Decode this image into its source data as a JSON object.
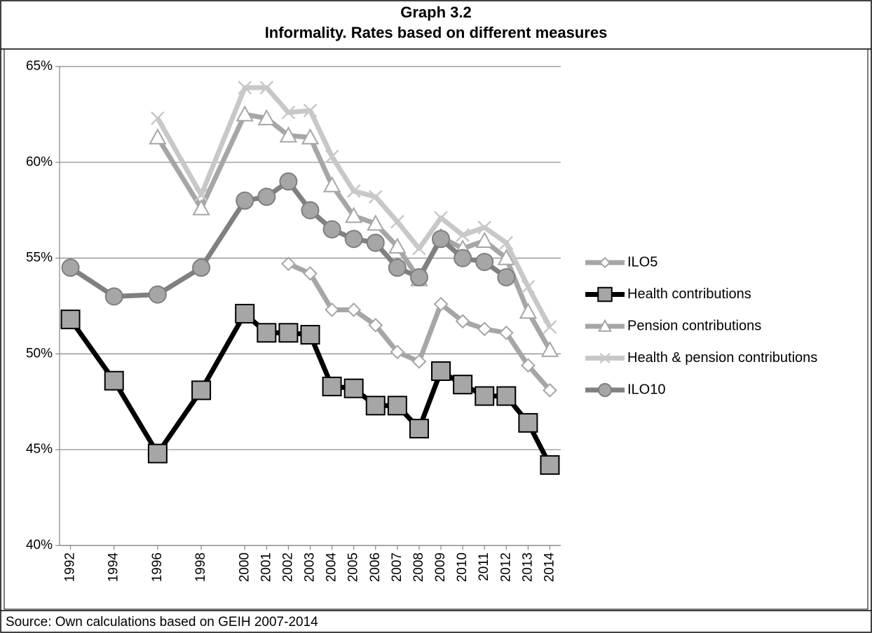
{
  "chart_data": {
    "type": "line",
    "title": "Graph 3.2",
    "subtitle": "Informality.  Rates based on different measures",
    "source": "Source: Own calculations based on GEIH 2007-2014",
    "x": [
      1992,
      1994,
      1996,
      1998,
      2000,
      2001,
      2002,
      2003,
      2004,
      2005,
      2006,
      2007,
      2008,
      2009,
      2010,
      2011,
      2012,
      2013,
      2014
    ],
    "xlim": [
      1991.5,
      2014.5
    ],
    "xticks": [
      1992,
      1994,
      1996,
      1998,
      2000,
      2001,
      2002,
      2003,
      2004,
      2005,
      2006,
      2007,
      2008,
      2009,
      2010,
      2011,
      2012,
      2013,
      2014
    ],
    "ylim": [
      40,
      65
    ],
    "yticks": [
      {
        "value": 40,
        "label": "40%"
      },
      {
        "value": 45,
        "label": "45%"
      },
      {
        "value": 50,
        "label": "50%"
      },
      {
        "value": 55,
        "label": "55%"
      },
      {
        "value": 60,
        "label": "60%"
      },
      {
        "value": 65,
        "label": "65%"
      }
    ],
    "grid": true,
    "legend": "right",
    "series": [
      {
        "name": "ILO5",
        "color": "#a6a6a6",
        "marker": "diamond",
        "values": [
          null,
          null,
          null,
          null,
          null,
          null,
          54.7,
          54.2,
          52.3,
          52.3,
          51.5,
          50.1,
          49.6,
          52.6,
          51.7,
          51.3,
          51.1,
          49.4,
          48.1
        ]
      },
      {
        "name": "Health contributions",
        "color": "#000000",
        "marker": "square",
        "values": [
          51.8,
          48.6,
          44.8,
          48.1,
          52.1,
          51.1,
          51.1,
          51.0,
          48.3,
          48.2,
          47.3,
          47.3,
          46.1,
          49.1,
          48.4,
          47.8,
          47.8,
          46.4,
          44.2
        ]
      },
      {
        "name": "Pension contributions",
        "color": "#a6a6a6",
        "marker": "triangle",
        "values": [
          null,
          null,
          61.3,
          57.6,
          62.5,
          62.3,
          61.4,
          61.3,
          58.8,
          57.2,
          56.8,
          55.6,
          53.9,
          56.1,
          55.5,
          55.9,
          55.0,
          52.2,
          50.2
        ]
      },
      {
        "name": "Health & pension contributions",
        "color": "#c8c8c8",
        "marker": "x",
        "values": [
          null,
          null,
          62.3,
          58.3,
          63.9,
          63.9,
          62.6,
          62.7,
          60.3,
          58.5,
          58.2,
          56.9,
          55.5,
          57.1,
          56.2,
          56.6,
          55.8,
          53.5,
          51.4
        ]
      },
      {
        "name": "ILO10",
        "color": "#808080",
        "marker": "circle",
        "values": [
          54.5,
          53.0,
          53.1,
          54.5,
          58.0,
          58.2,
          59.0,
          57.5,
          56.5,
          56.0,
          55.8,
          54.5,
          54.0,
          56.0,
          55.0,
          54.8,
          54.0,
          null,
          null
        ]
      }
    ]
  }
}
